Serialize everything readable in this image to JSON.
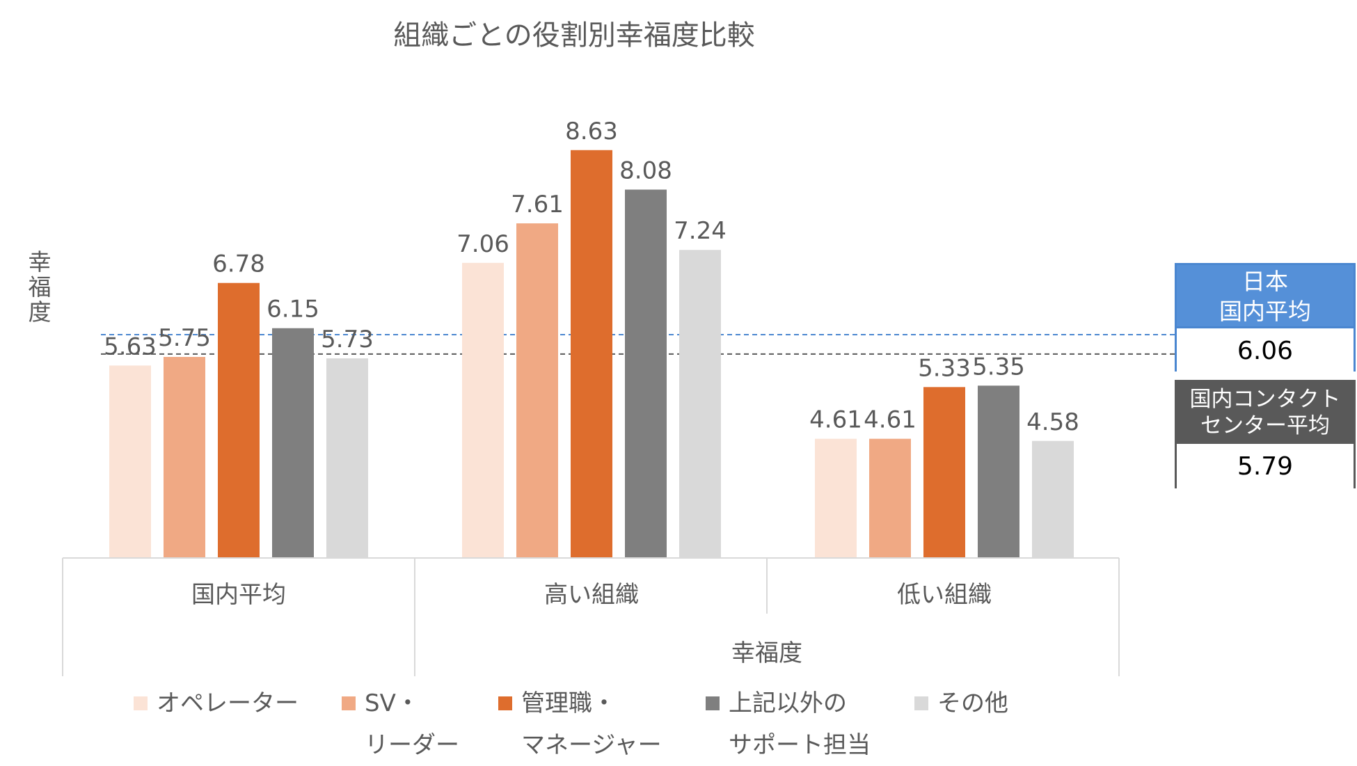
{
  "chart_data": {
    "type": "bar",
    "title": "組織ごとの役割別幸福度比較",
    "xlabel": "幸福度",
    "ylabel": "幸福度",
    "ylim": [
      2.95,
      9.8
    ],
    "categories": [
      "国内平均",
      "高い組織",
      "低い組織"
    ],
    "series": [
      {
        "name": "オペレーター",
        "legend_lines": [
          "オペレーター"
        ],
        "color": "#fbe3d6",
        "values": [
          5.63,
          7.06,
          4.61
        ]
      },
      {
        "name": "SV・リーダー",
        "legend_lines": [
          "SV・",
          "リーダー"
        ],
        "color": "#f0a984",
        "values": [
          5.75,
          7.61,
          4.61
        ]
      },
      {
        "name": "管理職・マネージャー",
        "legend_lines": [
          "管理職・",
          "マネージャー"
        ],
        "color": "#de6d2d",
        "values": [
          6.78,
          8.63,
          5.33
        ]
      },
      {
        "name": "上記以外のサポート担当",
        "legend_lines": [
          "上記以外の",
          "サポート担当"
        ],
        "color": "#7f7f7f",
        "values": [
          6.15,
          8.08,
          5.35
        ]
      },
      {
        "name": "その他",
        "legend_lines": [
          "その他"
        ],
        "color": "#d9d9d9",
        "values": [
          5.73,
          7.24,
          4.58
        ]
      }
    ],
    "reference_lines": [
      {
        "label_lines": [
          "日本",
          "国内平均"
        ],
        "value": 6.06,
        "display": "6.06",
        "color": "#4a86d0"
      },
      {
        "label_lines": [
          "国内コンタクト",
          "センター平均"
        ],
        "value": 5.79,
        "display": "5.79",
        "color": "#595959"
      }
    ],
    "legend_position": "bottom"
  }
}
